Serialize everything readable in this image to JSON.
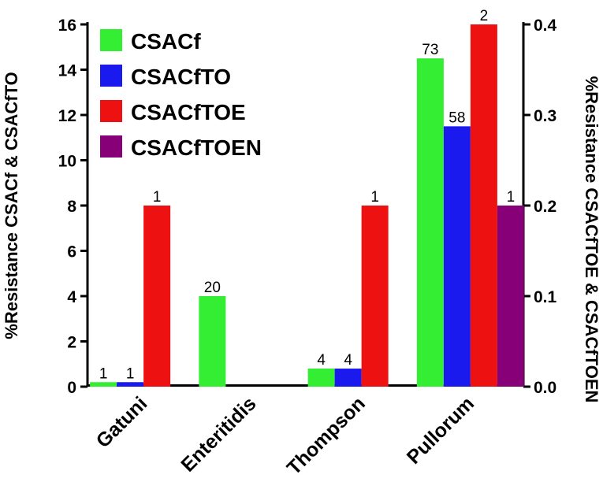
{
  "chart_data": {
    "type": "bar",
    "categories": [
      "Gatuni",
      "Enteritidis",
      "Thompson",
      "Pullorum"
    ],
    "series": [
      {
        "name": "CSACf",
        "color": "#33ee33",
        "axis": "left",
        "values": [
          0.2,
          4,
          0.8,
          14.5
        ],
        "labels": [
          "1",
          "20",
          "4",
          "73"
        ]
      },
      {
        "name": "CSACfTO",
        "color": "#1a1aee",
        "axis": "left",
        "values": [
          0.2,
          null,
          0.8,
          11.5
        ],
        "labels": [
          "1",
          "",
          "4",
          "58"
        ]
      },
      {
        "name": "CSACfTOE",
        "color": "#ee1111",
        "axis": "right",
        "values": [
          0.2,
          null,
          0.2,
          0.4
        ],
        "labels": [
          "1",
          "",
          "1",
          "2"
        ]
      },
      {
        "name": "CSACfTOEN",
        "color": "#880077",
        "axis": "right",
        "values": [
          null,
          null,
          null,
          0.2
        ],
        "labels": [
          "",
          "",
          "",
          "1"
        ]
      }
    ],
    "ylabel": "%Resistance CSACf & CSACfTO",
    "y2label": "%Resistance CSACfTOE & CSACfTOEN",
    "ylim": [
      0,
      16
    ],
    "y2lim": [
      0,
      0.4
    ],
    "yticks": [
      "0",
      "2",
      "4",
      "6",
      "8",
      "10",
      "12",
      "14",
      "16"
    ],
    "y2ticks": [
      "0.0",
      "0.1",
      "0.2",
      "0.3",
      "0.4"
    ],
    "legend_position": "top-left",
    "grid": false
  }
}
